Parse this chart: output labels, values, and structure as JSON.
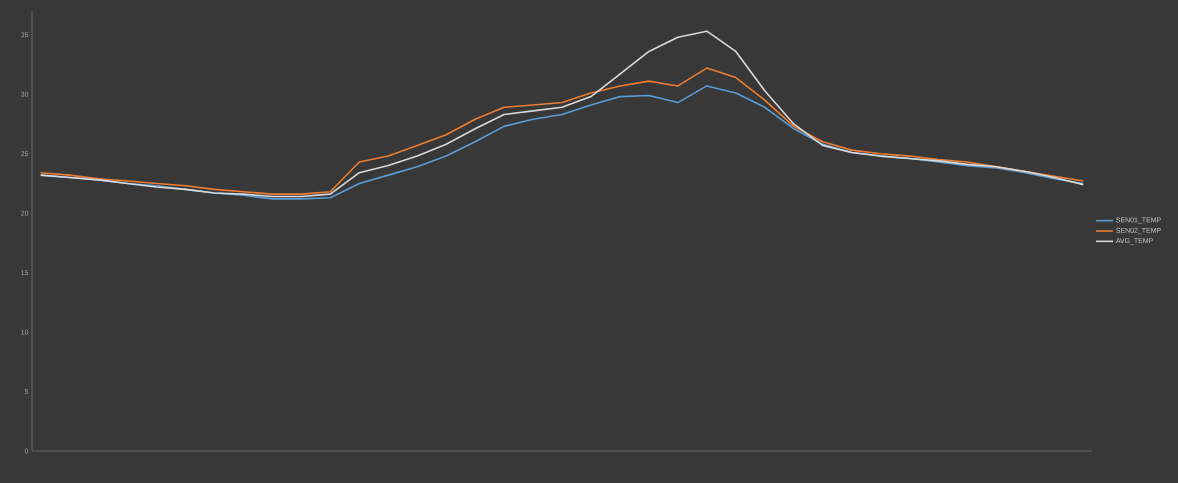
{
  "chart_data": {
    "type": "line",
    "categories": [
      null,
      null,
      null,
      null,
      null,
      null,
      null,
      null,
      null,
      null,
      null,
      null,
      null,
      null,
      null,
      null,
      null,
      null,
      null,
      null,
      null,
      null,
      null,
      null,
      null,
      null,
      null,
      null,
      null,
      null,
      null,
      null,
      null,
      null,
      null,
      null,
      null
    ],
    "series": [
      {
        "name": "SEN01_TEMP",
        "color": "#5b9bd5",
        "values": [
          23.2,
          23.0,
          22.8,
          22.5,
          22.3,
          22.0,
          21.7,
          21.5,
          21.2,
          21.2,
          21.3,
          22.5,
          23.2,
          23.9,
          24.8,
          26.0,
          27.3,
          27.9,
          28.3,
          29.1,
          29.8,
          29.9,
          29.3,
          30.7,
          30.1,
          28.9,
          27.1,
          25.8,
          25.1,
          24.8,
          24.6,
          24.3,
          24.0,
          23.8,
          23.4,
          22.9,
          22.5
        ]
      },
      {
        "name": "SEN02_TEMP",
        "color": "#ed7d31",
        "values": [
          23.4,
          23.2,
          22.9,
          22.7,
          22.5,
          22.3,
          22.0,
          21.8,
          21.6,
          21.6,
          21.8,
          24.3,
          24.8,
          25.7,
          26.6,
          27.9,
          28.9,
          29.1,
          29.3,
          30.1,
          30.7,
          31.1,
          30.7,
          32.2,
          31.4,
          29.5,
          27.3,
          26.0,
          25.3,
          25.0,
          24.8,
          24.5,
          24.3,
          23.9,
          23.5,
          23.1,
          22.7
        ]
      },
      {
        "name": "AVG_TEMP",
        "color": "#d9d9d9",
        "values": [
          23.2,
          23.0,
          22.8,
          22.5,
          22.2,
          22.0,
          21.7,
          21.6,
          21.4,
          21.4,
          21.6,
          23.4,
          24.0,
          24.8,
          25.8,
          27.1,
          28.3,
          28.6,
          28.9,
          29.8,
          31.7,
          33.6,
          34.8,
          35.3,
          33.6,
          30.3,
          27.5,
          25.7,
          25.1,
          24.8,
          24.6,
          24.4,
          24.1,
          23.9,
          23.5,
          23.0,
          22.4
        ]
      }
    ],
    "ylim": [
      0,
      37
    ],
    "yticks": [
      0,
      5,
      10,
      15,
      20,
      25,
      30,
      35
    ],
    "legend": "right",
    "marker": "none",
    "line_style": "solid"
  }
}
